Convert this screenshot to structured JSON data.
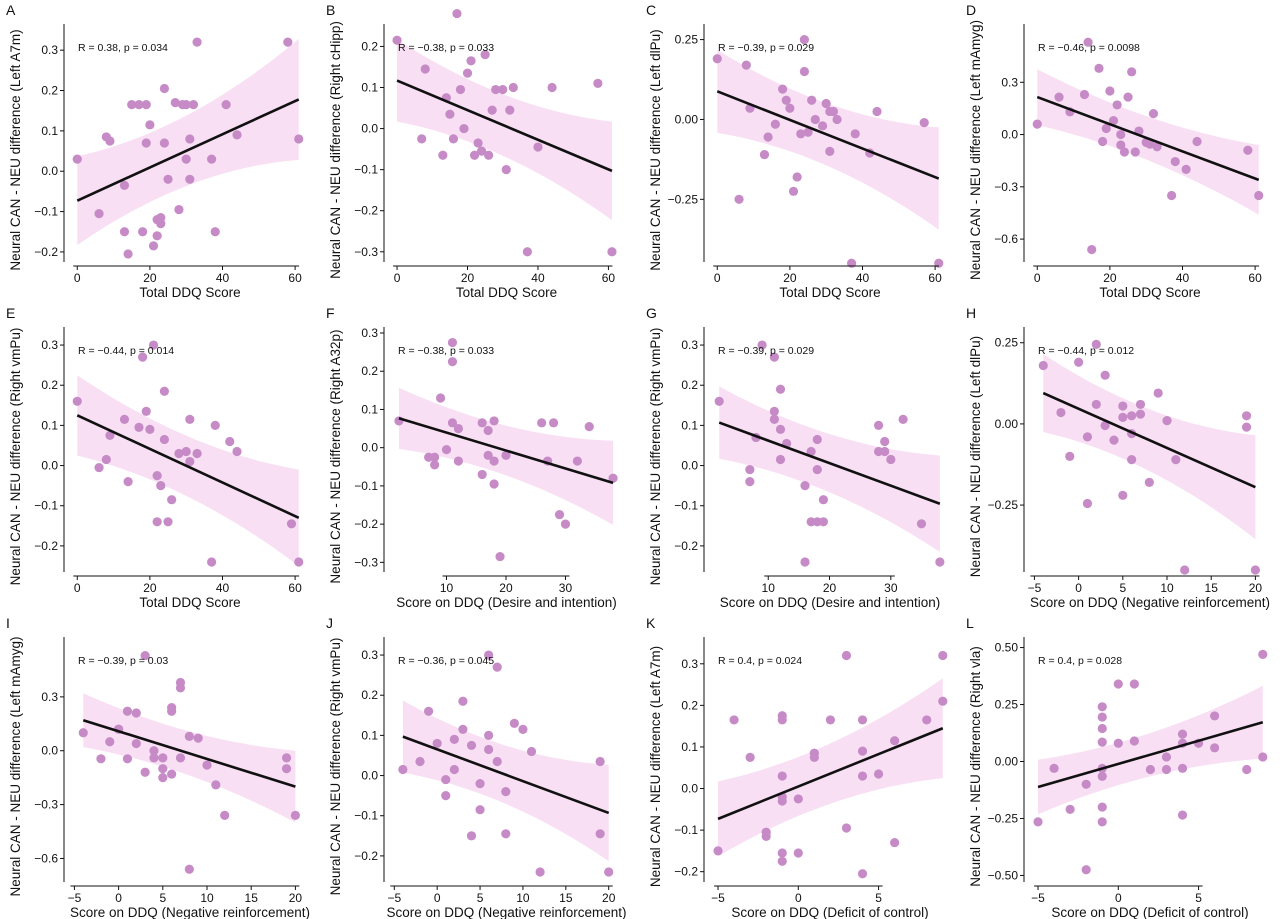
{
  "colors": {
    "point": "#c68bc6",
    "band": "#f5d4f0",
    "line": "#111111",
    "axis": "#111111"
  },
  "chart_data": [
    {
      "panel": "A",
      "type": "scatter",
      "stat": "R = 0.38, p = 0.034",
      "xlabel": "Total DDQ Score",
      "ylabel": "Neural CAN - NEU difference (Left A7m)",
      "xlim": [
        -2,
        63
      ],
      "ylim": [
        -0.22,
        0.35
      ],
      "xticks": [
        0,
        20,
        40,
        60
      ],
      "yticks": [
        -0.2,
        -0.1,
        0.0,
        0.1,
        0.2,
        0.3
      ],
      "x": [
        0,
        6,
        8,
        9,
        13,
        13,
        14,
        15,
        17,
        18,
        19,
        19,
        20,
        21,
        22,
        22,
        23,
        23,
        24,
        24,
        25,
        27,
        28,
        29,
        30,
        30,
        31,
        31,
        32,
        33,
        37,
        38,
        41,
        44,
        58,
        61
      ],
      "y": [
        0.03,
        -0.105,
        0.085,
        0.075,
        -0.035,
        -0.15,
        -0.205,
        0.165,
        0.165,
        -0.15,
        0.07,
        0.165,
        0.115,
        -0.185,
        -0.16,
        -0.12,
        -0.115,
        -0.13,
        0.07,
        0.205,
        -0.02,
        0.17,
        -0.095,
        0.165,
        0.165,
        0.03,
        0.08,
        -0.02,
        0.165,
        0.32,
        0.03,
        -0.15,
        0.165,
        0.09,
        0.32,
        0.08
      ],
      "fit": [
        [
          0,
          -0.073
        ],
        [
          61,
          0.178
        ]
      ],
      "band_hw": [
        0.11,
        0.045,
        0.15
      ]
    },
    {
      "panel": "B",
      "type": "scatter",
      "stat": "R = −0.38, p = 0.033",
      "xlabel": "Total DDQ Score",
      "ylabel": "Neural CAN - NEU difference (Right cHipp)",
      "xlim": [
        -2,
        63
      ],
      "ylim": [
        -0.32,
        0.24
      ],
      "xticks": [
        0,
        20,
        40,
        60
      ],
      "yticks": [
        -0.3,
        -0.2,
        -0.1,
        0.0,
        0.1,
        0.2
      ],
      "x": [
        0,
        7,
        8,
        13,
        14,
        15,
        16,
        17,
        18,
        19,
        20,
        21,
        22,
        23,
        24,
        25,
        26,
        27,
        28,
        30,
        31,
        32,
        33,
        37,
        40,
        44,
        57,
        61
      ],
      "y": [
        0.215,
        -0.025,
        0.145,
        -0.065,
        0.075,
        0.035,
        -0.025,
        0.28,
        0.095,
        0.0,
        0.135,
        0.165,
        -0.065,
        -0.035,
        -0.055,
        0.18,
        -0.065,
        0.045,
        0.095,
        0.095,
        -0.1,
        0.045,
        0.1,
        -0.3,
        -0.045,
        0.1,
        0.11,
        -0.3
      ],
      "fit": [
        [
          0,
          0.117
        ],
        [
          61,
          -0.103
        ]
      ],
      "band_hw": [
        0.1,
        0.04,
        0.12
      ]
    },
    {
      "panel": "C",
      "type": "scatter",
      "stat": "R = −0.39, p = 0.029",
      "xlabel": "Total DDQ Score",
      "ylabel": "Neural CAN - NEU difference (Left dlPu)",
      "xlim": [
        -2,
        63
      ],
      "ylim": [
        -0.44,
        0.28
      ],
      "xticks": [
        0,
        20,
        40,
        60
      ],
      "yticks": [
        -0.25,
        0.0,
        0.25
      ],
      "x": [
        0,
        6,
        8,
        9,
        13,
        14,
        16,
        18,
        19,
        20,
        21,
        22,
        23,
        24,
        24,
        25,
        26,
        27,
        29,
        30,
        31,
        31,
        32,
        33,
        37,
        38,
        42,
        44,
        57,
        61
      ],
      "y": [
        0.19,
        -0.25,
        0.17,
        0.035,
        -0.11,
        -0.055,
        -0.015,
        0.095,
        0.06,
        0.035,
        -0.225,
        -0.18,
        -0.045,
        0.25,
        0.15,
        -0.04,
        0.06,
        0.0,
        -0.02,
        0.05,
        0.025,
        -0.1,
        0.025,
        0.0,
        -0.45,
        -0.045,
        -0.105,
        0.025,
        -0.01,
        -0.45
      ],
      "fit": [
        [
          0,
          0.088
        ],
        [
          61,
          -0.185
        ]
      ],
      "band_hw": [
        0.13,
        0.05,
        0.16
      ]
    },
    {
      "panel": "D",
      "type": "scatter",
      "stat": "R = −0.46, p = 0.0098",
      "xlabel": "Total DDQ Score",
      "ylabel": "Neural CAN - NEU difference (Left mAmyg)",
      "xlim": [
        -2,
        63
      ],
      "ylim": [
        -0.72,
        0.6
      ],
      "xticks": [
        0,
        20,
        40,
        60
      ],
      "yticks": [
        -0.6,
        -0.3,
        0.0,
        0.3
      ],
      "x": [
        0,
        6,
        9,
        13,
        14,
        15,
        17,
        18,
        19,
        20,
        21,
        22,
        23,
        23,
        24,
        25,
        26,
        27,
        28,
        30,
        31,
        32,
        33,
        37,
        38,
        41,
        44,
        58,
        61
      ],
      "y": [
        0.06,
        0.215,
        0.13,
        0.23,
        0.53,
        -0.66,
        0.38,
        -0.04,
        0.035,
        0.25,
        0.08,
        0.17,
        -0.06,
        0.0,
        -0.1,
        0.215,
        0.36,
        -0.1,
        0.02,
        -0.045,
        -0.055,
        0.12,
        -0.07,
        -0.35,
        -0.155,
        -0.2,
        -0.04,
        -0.09,
        -0.35
      ],
      "fit": [
        [
          0,
          0.215
        ],
        [
          61,
          -0.26
        ]
      ],
      "band_hw": [
        0.16,
        0.07,
        0.2
      ]
    },
    {
      "panel": "E",
      "type": "scatter",
      "stat": "R = −0.44, p = 0.014",
      "xlabel": "Total DDQ Score",
      "ylabel": "Neural CAN - NEU difference (Right vmPu)",
      "xlim": [
        -2,
        63
      ],
      "ylim": [
        -0.26,
        0.33
      ],
      "xticks": [
        0,
        20,
        40,
        60
      ],
      "yticks": [
        -0.2,
        -0.1,
        0.0,
        0.1,
        0.2,
        0.3
      ],
      "x": [
        0,
        6,
        8,
        9,
        13,
        14,
        17,
        18,
        19,
        20,
        21,
        22,
        22,
        23,
        24,
        24,
        25,
        26,
        28,
        30,
        31,
        31,
        33,
        37,
        38,
        42,
        44,
        59,
        61
      ],
      "y": [
        0.16,
        -0.005,
        0.015,
        0.075,
        0.115,
        -0.04,
        0.095,
        0.27,
        0.135,
        0.09,
        0.3,
        -0.025,
        -0.14,
        -0.05,
        0.185,
        0.065,
        -0.14,
        -0.085,
        0.03,
        0.035,
        0.115,
        0.01,
        0.03,
        -0.24,
        0.1,
        0.06,
        0.035,
        -0.145,
        -0.24
      ],
      "fit": [
        [
          0,
          0.125
        ],
        [
          61,
          -0.13
        ]
      ],
      "band_hw": [
        0.1,
        0.04,
        0.12
      ]
    },
    {
      "panel": "F",
      "type": "scatter",
      "stat": "R = −0.38, p = 0.033",
      "xlabel": "Score on DDQ (Desire and intention)",
      "ylabel": "Neural CAN - NEU difference (Right A32p)",
      "xlim": [
        0.5,
        39
      ],
      "ylim": [
        -0.32,
        0.3
      ],
      "xticks": [
        10,
        20,
        30
      ],
      "yticks": [
        -0.3,
        -0.2,
        -0.1,
        0.0,
        0.1,
        0.2,
        0.3
      ],
      "x": [
        2,
        7,
        8,
        8,
        9,
        10,
        11,
        11,
        11,
        12,
        12,
        16,
        16,
        17,
        17,
        18,
        18,
        18,
        19,
        20,
        26,
        27,
        28,
        29,
        30,
        32,
        34,
        38
      ],
      "y": [
        0.07,
        -0.025,
        -0.045,
        -0.025,
        0.13,
        -0.005,
        0.275,
        0.225,
        0.065,
        -0.035,
        0.05,
        0.065,
        -0.07,
        -0.02,
        0.045,
        0.07,
        -0.095,
        -0.035,
        -0.285,
        -0.02,
        0.065,
        -0.035,
        0.065,
        -0.175,
        -0.2,
        -0.035,
        0.055,
        -0.08
      ],
      "fit": [
        [
          2,
          0.077
        ],
        [
          38,
          -0.092
        ]
      ],
      "band_hw": [
        0.08,
        0.035,
        0.11
      ]
    },
    {
      "panel": "G",
      "type": "scatter",
      "stat": "R = −0.39, p = 0.029",
      "xlabel": "Score on DDQ (Desire and intention)",
      "ylabel": "Neural CAN - NEU difference (Right vmPu)",
      "xlim": [
        0.5,
        39
      ],
      "ylim": [
        -0.26,
        0.33
      ],
      "xticks": [
        10,
        20,
        30
      ],
      "yticks": [
        -0.2,
        -0.1,
        0.0,
        0.1,
        0.2,
        0.3
      ],
      "x": [
        2,
        7,
        7,
        8,
        9,
        11,
        11,
        11,
        12,
        12,
        12,
        13,
        16,
        16,
        17,
        17,
        18,
        18,
        18,
        19,
        19,
        28,
        28,
        29,
        29,
        30,
        32,
        35,
        38
      ],
      "y": [
        0.16,
        -0.01,
        -0.04,
        0.07,
        0.3,
        0.27,
        0.135,
        0.115,
        0.015,
        0.09,
        0.19,
        0.055,
        -0.24,
        -0.05,
        -0.14,
        0.035,
        -0.14,
        -0.01,
        0.065,
        -0.085,
        -0.14,
        0.1,
        0.035,
        0.06,
        0.035,
        0.015,
        0.115,
        -0.145,
        -0.24
      ],
      "fit": [
        [
          2,
          0.107
        ],
        [
          38,
          -0.095
        ]
      ],
      "band_hw": [
        0.09,
        0.04,
        0.12
      ]
    },
    {
      "panel": "H",
      "type": "scatter",
      "stat": "R = −0.44, p = 0.012",
      "xlabel": "Score on DDQ (Negative reinforcement)",
      "ylabel": "Neural CAN - NEU difference (Left dlPu)",
      "xlim": [
        -5.5,
        21.2
      ],
      "ylim": [
        -0.45,
        0.28
      ],
      "xticks": [
        -5,
        0,
        5,
        10,
        15,
        20
      ],
      "yticks": [
        -0.25,
        0.0,
        0.25
      ],
      "x": [
        -4,
        -2,
        -1,
        0,
        1,
        1,
        2,
        2,
        3,
        3,
        4,
        5,
        5,
        5,
        6,
        6,
        6,
        7,
        7,
        8,
        9,
        10,
        11,
        12,
        19,
        19,
        20
      ],
      "y": [
        0.18,
        0.035,
        -0.1,
        0.19,
        -0.04,
        -0.245,
        0.06,
        0.245,
        0.15,
        -0.005,
        -0.05,
        0.055,
        0.02,
        -0.22,
        0.025,
        -0.11,
        -0.03,
        0.06,
        0.03,
        -0.18,
        0.095,
        0.01,
        -0.11,
        -0.45,
        0.025,
        -0.01,
        -0.45
      ],
      "fit": [
        [
          -4,
          0.095
        ],
        [
          20,
          -0.195
        ]
      ],
      "band_hw": [
        0.12,
        0.05,
        0.16
      ]
    },
    {
      "panel": "I",
      "type": "scatter",
      "stat": "R = −0.39, p = 0.03",
      "xlabel": "Score on DDQ (Negative reinforcement)",
      "ylabel": "Neural CAN - NEU difference (Left mAmyg)",
      "xlim": [
        -5.5,
        21.2
      ],
      "ylim": [
        -0.72,
        0.6
      ],
      "xticks": [
        -5,
        0,
        5,
        10,
        15,
        20
      ],
      "yticks": [
        -0.6,
        -0.3,
        0.0,
        0.3
      ],
      "x": [
        -4,
        -2,
        -1,
        0,
        0,
        1,
        1,
        2,
        2,
        3,
        3,
        4,
        4,
        5,
        5,
        5,
        6,
        6,
        6,
        7,
        7,
        7,
        8,
        8,
        9,
        10,
        11,
        12,
        19,
        19,
        20
      ],
      "y": [
        0.1,
        -0.045,
        0.05,
        0.12,
        0.12,
        0.22,
        -0.045,
        0.21,
        0.04,
        0.53,
        -0.12,
        0.0,
        -0.04,
        -0.04,
        -0.15,
        -0.1,
        0.24,
        0.22,
        -0.13,
        0.38,
        0.35,
        -0.04,
        -0.66,
        0.08,
        0.07,
        -0.08,
        -0.19,
        -0.36,
        -0.04,
        -0.1,
        -0.36
      ],
      "fit": [
        [
          -4,
          0.17
        ],
        [
          20,
          -0.2
        ]
      ],
      "band_hw": [
        0.15,
        0.07,
        0.2
      ]
    },
    {
      "panel": "J",
      "type": "scatter",
      "stat": "R = −0.36, p = 0.045",
      "xlabel": "Score on DDQ (Negative reinforcement)",
      "ylabel": "Neural CAN - NEU difference (Right vmPu)",
      "xlim": [
        -5.5,
        21.2
      ],
      "ylim": [
        -0.26,
        0.33
      ],
      "xticks": [
        -5,
        0,
        5,
        10,
        15,
        20
      ],
      "yticks": [
        -0.2,
        -0.1,
        0.0,
        0.1,
        0.2,
        0.3
      ],
      "x": [
        -4,
        -2,
        -1,
        0,
        1,
        1,
        2,
        2,
        3,
        3,
        4,
        4,
        5,
        5,
        6,
        6,
        6,
        7,
        7,
        8,
        8,
        9,
        10,
        11,
        12,
        19,
        19,
        20
      ],
      "y": [
        0.015,
        0.035,
        0.16,
        0.08,
        -0.05,
        -0.01,
        0.015,
        0.09,
        0.115,
        0.185,
        -0.15,
        0.075,
        -0.085,
        -0.02,
        0.3,
        0.1,
        0.065,
        0.27,
        0.035,
        -0.145,
        -0.04,
        0.13,
        0.115,
        0.06,
        -0.24,
        0.035,
        -0.145,
        -0.24
      ],
      "fit": [
        [
          -4,
          0.097
        ],
        [
          20,
          -0.093
        ]
      ],
      "band_hw": [
        0.09,
        0.04,
        0.12
      ]
    },
    {
      "panel": "K",
      "type": "scatter",
      "stat": "R = 0.4, p = 0.024",
      "xlabel": "Score on DDQ (Deficit of control)",
      "ylabel": "Neural CAN - NEU difference (Left A7m)",
      "xlim": [
        -5.5,
        9.2
      ],
      "ylim": [
        -0.22,
        0.35
      ],
      "xticks": [
        -5,
        0,
        5
      ],
      "yticks": [
        -0.2,
        -0.1,
        0.0,
        0.1,
        0.2,
        0.3
      ],
      "x": [
        -5,
        -4,
        -3,
        -2,
        -2,
        -1,
        -1,
        -1,
        -1,
        -1,
        -1,
        -1,
        0,
        0,
        1,
        1,
        2,
        3,
        3,
        4,
        4,
        4,
        4,
        5,
        6,
        6,
        8,
        9,
        9
      ],
      "y": [
        -0.15,
        0.165,
        0.075,
        -0.115,
        -0.105,
        0.175,
        0.165,
        0.03,
        -0.03,
        -0.155,
        -0.175,
        -0.02,
        -0.155,
        -0.025,
        0.085,
        0.075,
        0.165,
        0.32,
        -0.095,
        0.165,
        0.09,
        -0.205,
        0.03,
        0.035,
        0.115,
        -0.13,
        0.165,
        0.32,
        0.21
      ],
      "fit": [
        [
          -5,
          -0.073
        ],
        [
          9,
          0.145
        ]
      ],
      "band_hw": [
        0.09,
        0.04,
        0.12
      ]
    },
    {
      "panel": "L",
      "type": "scatter",
      "stat": "R = 0.4, p = 0.028",
      "xlabel": "Score on DDQ (Deficit of control)",
      "ylabel": "Neural CAN - NEU difference (Right vla)",
      "xlim": [
        -5.5,
        9.2
      ],
      "ylim": [
        -0.52,
        0.52
      ],
      "xticks": [
        -5,
        0,
        5
      ],
      "yticks": [
        -0.5,
        -0.25,
        0.0,
        0.25,
        0.5
      ],
      "x": [
        -5,
        -4,
        -3,
        -2,
        -2,
        -1,
        -1,
        -1,
        -1,
        -1,
        -1,
        -1,
        -1,
        0,
        0,
        1,
        1,
        2,
        3,
        3,
        4,
        4,
        4,
        4,
        5,
        6,
        6,
        8,
        9,
        9
      ],
      "y": [
        -0.265,
        -0.03,
        -0.21,
        -0.1,
        -0.475,
        0.24,
        0.195,
        0.145,
        0.085,
        -0.03,
        -0.2,
        -0.265,
        -0.065,
        0.34,
        0.08,
        0.34,
        0.09,
        -0.035,
        0.02,
        -0.035,
        0.12,
        0.08,
        -0.235,
        -0.03,
        0.08,
        0.2,
        0.06,
        -0.035,
        0.47,
        0.02
      ],
      "fit": [
        [
          -5,
          -0.112
        ],
        [
          9,
          0.172
        ]
      ],
      "band_hw": [
        0.12,
        0.05,
        0.16
      ]
    }
  ]
}
